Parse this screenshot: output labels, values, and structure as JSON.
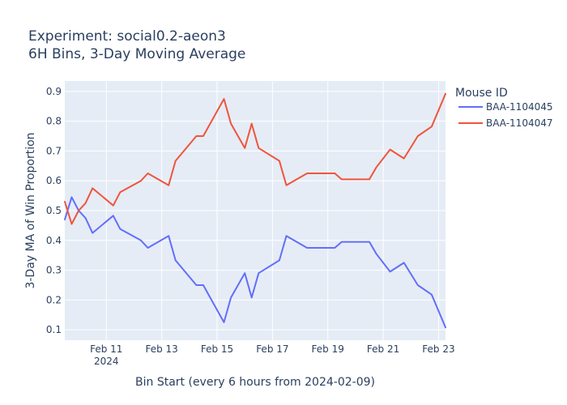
{
  "chart_data": {
    "type": "line",
    "title": "Experiment: social0.2-aeon3",
    "subtitle": "6H Bins, 3-Day Moving Average",
    "xlabel": "Bin Start (every 6 hours from 2024-02-09)",
    "ylabel": "3-Day MA of Win Proportion",
    "xlim_days": [
      9.5,
      23.25
    ],
    "ylim": [
      0.065,
      0.935
    ],
    "grid": true,
    "legend_title": "Mouse ID",
    "legend_position": "top-right",
    "x_ticks": [
      {
        "day": 11,
        "label": "Feb 11",
        "sublabel": "2024"
      },
      {
        "day": 13,
        "label": "Feb 13"
      },
      {
        "day": 15,
        "label": "Feb 15"
      },
      {
        "day": 17,
        "label": "Feb 17"
      },
      {
        "day": 19,
        "label": "Feb 19"
      },
      {
        "day": 21,
        "label": "Feb 21"
      },
      {
        "day": 23,
        "label": "Feb 23"
      }
    ],
    "y_ticks": [
      0.1,
      0.2,
      0.3,
      0.4,
      0.5,
      0.6,
      0.7,
      0.8,
      0.9
    ],
    "series": [
      {
        "name": "BAA-1104045",
        "color": "#636efa",
        "x": [
          9.5,
          9.75,
          10.0,
          10.25,
          10.5,
          11.25,
          11.5,
          12.25,
          12.5,
          13.25,
          13.5,
          14.25,
          14.5,
          15.25,
          15.5,
          16.0,
          16.25,
          16.5,
          17.25,
          17.5,
          18.25,
          18.5,
          19.25,
          19.5,
          20.5,
          20.75,
          21.25,
          21.75,
          22.25,
          22.75,
          23.25
        ],
        "values": [
          0.47,
          0.545,
          0.5,
          0.475,
          0.425,
          0.483,
          0.438,
          0.4,
          0.375,
          0.415,
          0.333,
          0.25,
          0.25,
          0.125,
          0.208,
          0.29,
          0.208,
          0.29,
          0.333,
          0.415,
          0.375,
          0.375,
          0.375,
          0.395,
          0.395,
          0.355,
          0.295,
          0.325,
          0.25,
          0.218,
          0.108
        ]
      },
      {
        "name": "BAA-1104047",
        "color": "#ef553b",
        "x": [
          9.5,
          9.75,
          10.0,
          10.25,
          10.5,
          11.25,
          11.5,
          12.25,
          12.5,
          13.25,
          13.5,
          14.25,
          14.5,
          15.25,
          15.5,
          16.0,
          16.25,
          16.5,
          17.25,
          17.5,
          18.25,
          18.5,
          19.25,
          19.5,
          20.5,
          20.75,
          21.25,
          21.75,
          22.25,
          22.75,
          23.25
        ],
        "values": [
          0.53,
          0.455,
          0.5,
          0.525,
          0.575,
          0.517,
          0.562,
          0.6,
          0.625,
          0.585,
          0.667,
          0.75,
          0.75,
          0.875,
          0.792,
          0.71,
          0.792,
          0.71,
          0.667,
          0.585,
          0.625,
          0.625,
          0.625,
          0.605,
          0.605,
          0.645,
          0.705,
          0.675,
          0.75,
          0.782,
          0.892
        ]
      }
    ]
  }
}
